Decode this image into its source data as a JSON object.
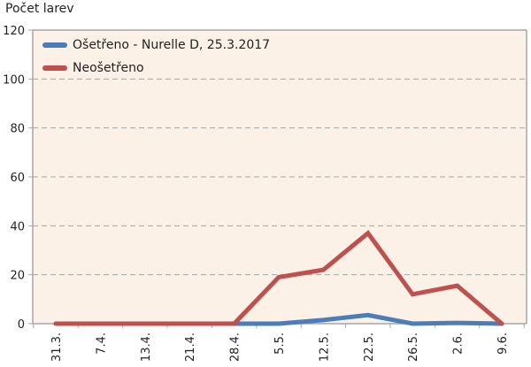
{
  "chart_data": {
    "type": "line",
    "title": "",
    "ylabel": "Počet larev",
    "xlabel": "",
    "ylim": [
      0,
      120
    ],
    "yticks": [
      0,
      20,
      40,
      60,
      80,
      100,
      120
    ],
    "grid": true,
    "legend_position": "top-left inside",
    "categories": [
      "31.3.",
      "7.4.",
      "13.4.",
      "21.4.",
      "28.4.",
      "5.5.",
      "12.5.",
      "22.5.",
      "26.5.",
      "2.6.",
      "9.6."
    ],
    "series": [
      {
        "name": "Ošetřeno - Nurelle D, 25.3.2017",
        "color": "#4a7ebb",
        "values": [
          0,
          0,
          0,
          0,
          0,
          0,
          1.5,
          3.5,
          0,
          0.3,
          0
        ]
      },
      {
        "name": "Neošetřeno",
        "color": "#c0504d",
        "values": [
          0,
          0,
          0,
          0,
          0,
          19,
          22,
          37,
          12,
          15.5,
          0
        ]
      }
    ]
  },
  "style": {
    "plot_bg": "#fbf1e6",
    "grid_color": "#a6a6a6",
    "axis_color": "#a6a6a6"
  }
}
